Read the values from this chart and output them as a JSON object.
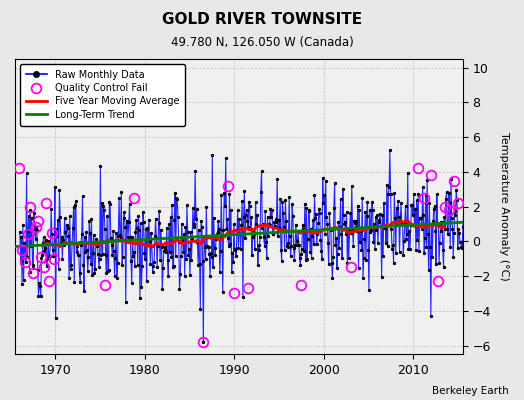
{
  "title": "GOLD RIVER TOWNSITE",
  "subtitle": "49.780 N, 126.050 W (Canada)",
  "ylabel": "Temperature Anomaly (°C)",
  "credit": "Berkeley Earth",
  "xlim": [
    1965.5,
    2015.5
  ],
  "ylim": [
    -6.5,
    10.5
  ],
  "yticks": [
    -6,
    -4,
    -2,
    0,
    2,
    4,
    6,
    8,
    10
  ],
  "xticks": [
    1970,
    1980,
    1990,
    2000,
    2010
  ],
  "background_color": "#e8e8e8",
  "plot_bg_color": "#f0f0f0",
  "seed": 12
}
